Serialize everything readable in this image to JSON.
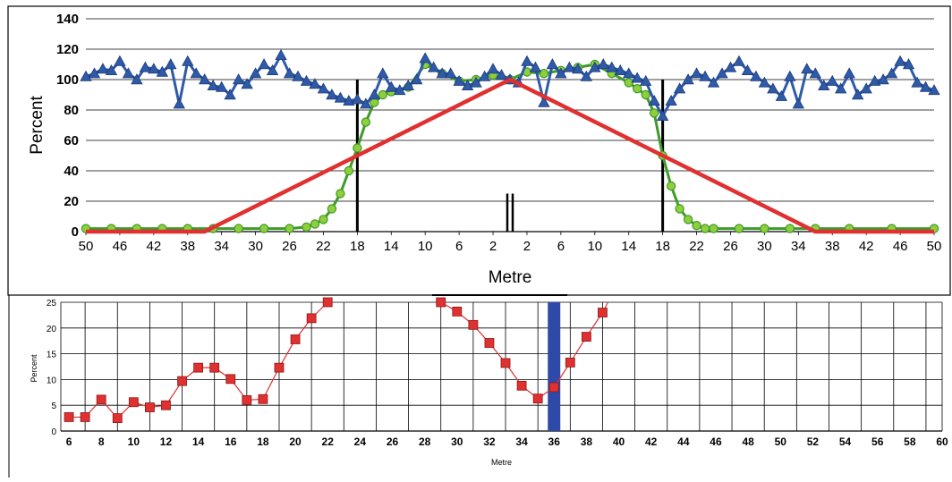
{
  "page_header": "",
  "colors": {
    "blue_series": "#2f5aa8",
    "green_series": "#3f9a2a",
    "green_fill": "#8ecf3c",
    "red_series": "#e03030",
    "blue_bar": "#2e49a8",
    "grid": "#000000",
    "frame": "#000000"
  },
  "chart_data": [
    {
      "type": "line",
      "title": "",
      "xlabel": "Metre",
      "ylabel": "Percent",
      "ylim": [
        0,
        140
      ],
      "yticks": [
        "0",
        "20",
        "40",
        "60",
        "80",
        "100",
        "120",
        "140"
      ],
      "xticks": [
        "50",
        "46",
        "42",
        "38",
        "34",
        "30",
        "26",
        "22",
        "18",
        "14",
        "10",
        "6",
        "2",
        "2",
        "6",
        "10",
        "14",
        "18",
        "22",
        "26",
        "30",
        "34",
        "38",
        "42",
        "46",
        "50"
      ],
      "grid": "horizontal",
      "x_note": "distance from centre; left half counts down 50→0, right half counts up 0→50",
      "vertical_markers_x": [
        -18,
        18
      ],
      "center_marker_heights": [
        25,
        25
      ],
      "series": [
        {
          "marker": "triangle",
          "color": "blue",
          "x": [
            -50,
            -49,
            -48,
            -47,
            -46,
            -45,
            -44,
            -43,
            -42,
            -41,
            -40,
            -39,
            -38,
            -37,
            -36,
            -35,
            -34,
            -33,
            -32,
            -31,
            -30,
            -29,
            -28,
            -27,
            -26,
            -25,
            -24,
            -23,
            -22,
            -21,
            -20,
            -19,
            -18,
            -17,
            -16,
            -15,
            -14,
            -13,
            -12,
            -11,
            -10,
            -9,
            -8,
            -7,
            -6,
            -5,
            -4,
            -3,
            -2,
            -1,
            0,
            1,
            2,
            3,
            4,
            5,
            6,
            7,
            8,
            9,
            10,
            11,
            12,
            13,
            14,
            15,
            16,
            17,
            18,
            19,
            20,
            21,
            22,
            23,
            24,
            25,
            26,
            27,
            28,
            29,
            30,
            31,
            32,
            33,
            34,
            35,
            36,
            37,
            38,
            39,
            40,
            41,
            42,
            43,
            44,
            45,
            46,
            47,
            48,
            49,
            50
          ],
          "values": [
            102,
            104,
            107,
            106,
            112,
            104,
            100,
            108,
            107,
            105,
            110,
            84,
            112,
            104,
            100,
            96,
            95,
            90,
            100,
            97,
            104,
            110,
            106,
            116,
            104,
            102,
            99,
            97,
            94,
            90,
            88,
            86,
            87,
            84,
            90,
            104,
            95,
            93,
            96,
            100,
            114,
            108,
            104,
            104,
            99,
            96,
            98,
            102,
            107,
            103,
            100,
            98,
            112,
            108,
            85,
            110,
            104,
            108,
            107,
            102,
            108,
            110,
            108,
            106,
            104,
            101,
            99,
            86,
            76,
            86,
            94,
            100,
            104,
            102,
            98,
            104,
            108,
            112,
            106,
            102,
            98,
            94,
            89,
            102,
            84,
            107,
            104,
            96,
            99,
            94,
            104,
            90,
            94,
            99,
            100,
            104,
            112,
            110,
            98,
            95,
            93
          ]
        },
        {
          "marker": "circle",
          "color": "green",
          "x": [
            -50,
            -47,
            -44,
            -41,
            -38,
            -35,
            -32,
            -29,
            -26,
            -24,
            -23,
            -22,
            -21,
            -20,
            -19,
            -18,
            -17,
            -16,
            -15,
            -14,
            -12,
            -10,
            -8,
            -6,
            -4,
            -2,
            0,
            2,
            4,
            6,
            8,
            10,
            12,
            14,
            15,
            16,
            17,
            18,
            19,
            20,
            21,
            22,
            23,
            24,
            27,
            30,
            33,
            36,
            40,
            45,
            50
          ],
          "values": [
            2,
            2,
            2,
            2,
            2,
            2,
            2,
            2,
            2,
            3,
            5,
            8,
            15,
            25,
            40,
            55,
            72,
            85,
            90,
            92,
            95,
            110,
            104,
            99,
            100,
            103,
            100,
            105,
            104,
            106,
            108,
            110,
            104,
            98,
            94,
            90,
            78,
            50,
            30,
            15,
            8,
            4,
            2,
            2,
            2,
            2,
            2,
            2,
            2,
            2,
            2
          ]
        },
        {
          "marker": "none",
          "color": "red",
          "x": [
            -50,
            -36,
            0,
            36,
            50
          ],
          "values": [
            0,
            0,
            100,
            0,
            0
          ]
        }
      ]
    },
    {
      "type": "line",
      "title": "",
      "xlabel": "Metre",
      "ylabel": "Percent",
      "ylim": [
        0,
        25
      ],
      "xlim": [
        6,
        60
      ],
      "yticks": [
        "0",
        "5",
        "10",
        "15",
        "20",
        "25"
      ],
      "xticks": [
        "6",
        "8",
        "10",
        "12",
        "14",
        "16",
        "18",
        "20",
        "22",
        "24",
        "26",
        "28",
        "30",
        "32",
        "34",
        "36",
        "38",
        "40",
        "42",
        "44",
        "46",
        "48",
        "50",
        "52",
        "54",
        "56",
        "58",
        "60"
      ],
      "grid": "both",
      "highlight_bar_x": 36,
      "series": [
        {
          "marker": "square",
          "color": "red",
          "x": [
            6,
            7,
            8,
            9,
            10,
            11,
            12,
            13,
            14,
            15,
            16,
            17,
            18,
            19,
            20,
            21,
            22,
            29,
            30,
            31,
            32,
            33,
            34,
            35,
            36,
            37,
            38,
            39
          ],
          "values": [
            2.7,
            2.7,
            6.1,
            2.5,
            5.6,
            4.6,
            5.0,
            9.7,
            12.3,
            12.3,
            10.1,
            6.0,
            6.2,
            12.3,
            17.8,
            21.9,
            25,
            25,
            23.2,
            20.6,
            17.1,
            13.2,
            8.8,
            6.3,
            8.5,
            13.3,
            18.3,
            23.0
          ]
        }
      ]
    }
  ]
}
